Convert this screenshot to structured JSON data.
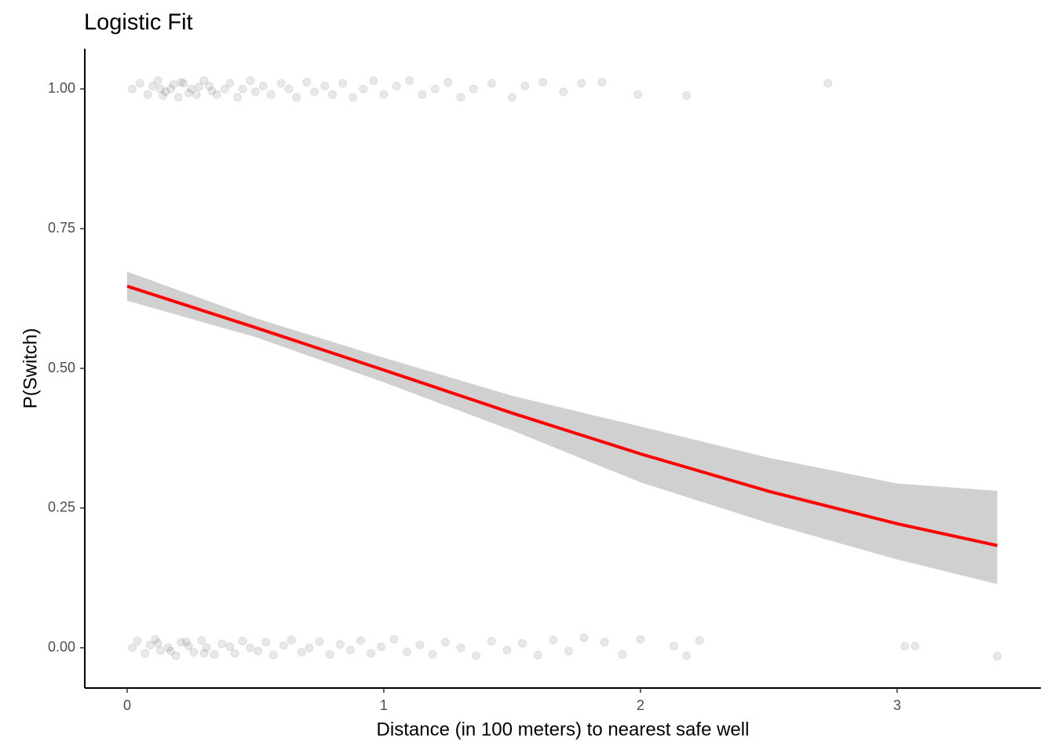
{
  "chart_data": {
    "type": "scatter",
    "title": "Logistic Fit",
    "x_label": "Distance (in 100 meters) to nearest safe well",
    "y_label": "P(Switch)",
    "xlim": [
      -0.165,
      3.56
    ],
    "ylim": [
      -0.072,
      1.072
    ],
    "xticks": [
      0,
      1,
      2,
      3
    ],
    "yticks": [
      {
        "value": 0,
        "label": "0.00"
      },
      {
        "value": 0.25,
        "label": "0.25"
      },
      {
        "value": 0.5,
        "label": "0.50"
      },
      {
        "value": 0.75,
        "label": "0.75"
      },
      {
        "value": 1,
        "label": "1.00"
      }
    ],
    "point_color": "#000000",
    "point_opacity": 0.09,
    "x": [
      0.02,
      0.05,
      0.08,
      0.1,
      0.12,
      0.15,
      0.17,
      0.2,
      0.22,
      0.25,
      0.27,
      0.3,
      0.32,
      0.35,
      0.38,
      0.4,
      0.43,
      0.45,
      0.48,
      0.5,
      0.53,
      0.56,
      0.6,
      0.63,
      0.66,
      0.7,
      0.73,
      0.77,
      0.8,
      0.84,
      0.88,
      0.92,
      0.96,
      1.0,
      1.05,
      1.1,
      1.15,
      1.2,
      1.25,
      1.3,
      1.35,
      1.42,
      1.5,
      1.55,
      1.62,
      1.7,
      1.77,
      1.85,
      1.99,
      2.18,
      2.73,
      0.13,
      0.18,
      0.24,
      0.28,
      0.33,
      0.14,
      0.21,
      0.02,
      0.04,
      0.07,
      0.09,
      0.11,
      0.13,
      0.16,
      0.19,
      0.21,
      0.24,
      0.26,
      0.29,
      0.31,
      0.34,
      0.37,
      0.4,
      0.42,
      0.45,
      0.48,
      0.51,
      0.54,
      0.57,
      0.61,
      0.64,
      0.68,
      0.71,
      0.75,
      0.79,
      0.83,
      0.87,
      0.91,
      0.95,
      0.99,
      1.04,
      1.09,
      1.14,
      1.19,
      1.24,
      1.3,
      1.36,
      1.42,
      1.48,
      1.54,
      1.6,
      1.66,
      1.72,
      1.78,
      1.86,
      1.93,
      2.0,
      2.13,
      2.18,
      2.23,
      3.03,
      3.07,
      3.39,
      0.12,
      0.17,
      0.23,
      0.3
    ],
    "y": [
      1.0,
      1.01,
      0.99,
      1.005,
      1.015,
      0.995,
      1.0,
      0.985,
      1.01,
      1.0,
      0.99,
      1.015,
      1.005,
      0.99,
      1.0,
      1.01,
      0.985,
      1.0,
      1.015,
      0.995,
      1.005,
      0.99,
      1.01,
      1.0,
      0.985,
      1.012,
      0.995,
      1.005,
      0.99,
      1.01,
      0.985,
      1.0,
      1.015,
      0.99,
      1.005,
      1.015,
      0.99,
      1.0,
      1.012,
      0.985,
      1.0,
      1.01,
      0.985,
      1.005,
      1.012,
      0.995,
      1.01,
      1.012,
      0.99,
      0.988,
      1.01,
      1.0,
      1.008,
      0.993,
      1.004,
      0.996,
      0.988,
      1.012,
      0.0,
      0.012,
      -0.01,
      0.005,
      0.015,
      -0.005,
      0.0,
      -0.014,
      0.01,
      0.003,
      -0.008,
      0.013,
      0.0,
      -0.012,
      0.007,
      0.002,
      -0.01,
      0.012,
      0.0,
      -0.006,
      0.01,
      -0.013,
      0.004,
      0.014,
      -0.008,
      0.0,
      0.011,
      -0.012,
      0.006,
      -0.004,
      0.013,
      -0.01,
      0.002,
      0.015,
      -0.007,
      0.005,
      -0.012,
      0.01,
      0.0,
      -0.014,
      0.012,
      -0.004,
      0.008,
      -0.013,
      0.014,
      -0.006,
      0.018,
      0.01,
      -0.012,
      0.015,
      0.003,
      -0.014,
      0.013,
      0.003,
      0.003,
      -0.015,
      0.008,
      -0.006,
      0.011,
      -0.01
    ],
    "fit": {
      "color": "#ff0000",
      "band_color": "#d0d0d0",
      "x": [
        0.0,
        0.5,
        1.0,
        1.5,
        2.0,
        2.5,
        3.0,
        3.39
      ],
      "y": [
        0.647,
        0.573,
        0.497,
        0.42,
        0.347,
        0.28,
        0.222,
        0.183
      ],
      "lower": [
        0.621,
        0.556,
        0.475,
        0.389,
        0.296,
        0.223,
        0.158,
        0.114
      ],
      "upper": [
        0.673,
        0.59,
        0.519,
        0.451,
        0.396,
        0.34,
        0.294,
        0.281
      ]
    }
  }
}
